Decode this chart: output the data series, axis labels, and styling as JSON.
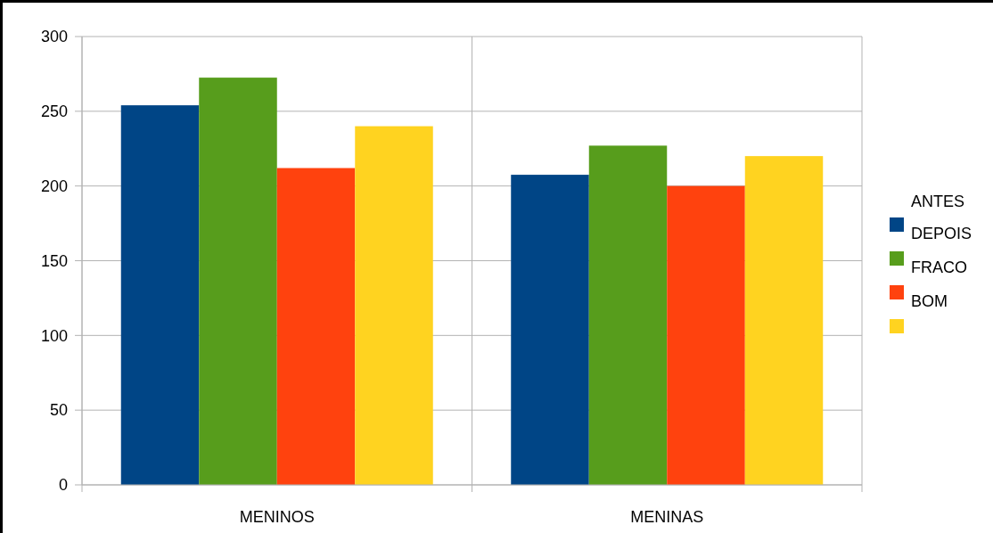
{
  "chart_data": {
    "type": "bar",
    "categories": [
      "MENINOS",
      "MENINAS"
    ],
    "legend_title": "ANTES",
    "series": [
      {
        "name": "DEPOIS",
        "color": "#004586",
        "values": [
          254,
          207.5
        ]
      },
      {
        "name": "FRACO",
        "color": "#579d1c",
        "values": [
          272.5,
          227
        ]
      },
      {
        "name": "BOM",
        "color": "#ff420e",
        "values": [
          212,
          200
        ]
      },
      {
        "color": "#ffd320",
        "values": [
          240,
          220
        ]
      }
    ],
    "ylim": [
      0,
      300
    ],
    "yticks": [
      0,
      50,
      100,
      150,
      200,
      250,
      300
    ],
    "grid": true,
    "legend": "right"
  }
}
